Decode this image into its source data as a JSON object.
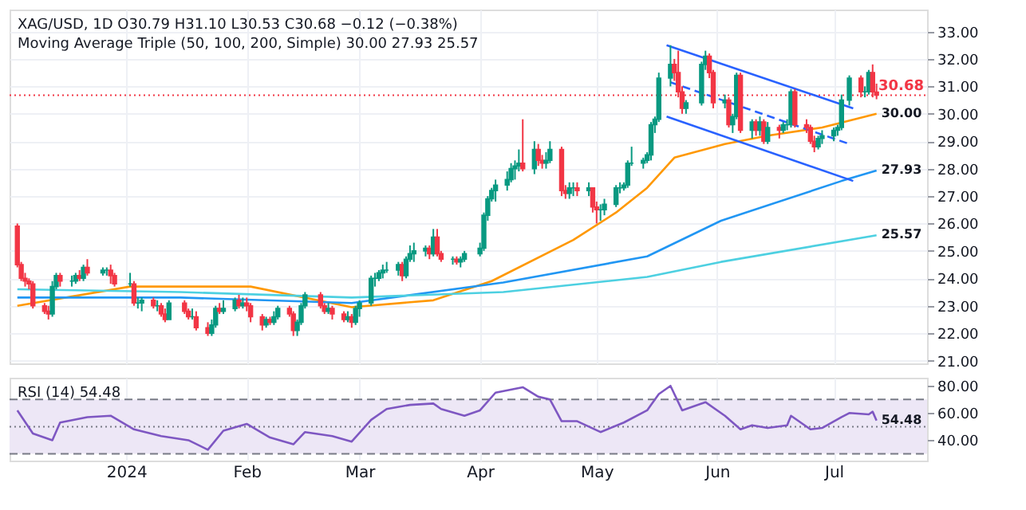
{
  "chart_data": [
    {
      "type": "candlestick",
      "title": "XAG/USD, 1D  O30.79  H31.10  L30.53  C30.68  −0.12 (−0.38%)",
      "subtitle": "Moving Average Triple (50, 100, 200, Simple)  30.00  27.93  25.57",
      "x": [
        "2023-12-04",
        "2023-12-05",
        "2023-12-06",
        "2023-12-07",
        "2023-12-08",
        "2023-12-11",
        "2023-12-12",
        "2023-12-13",
        "2023-12-14",
        "2023-12-15",
        "2023-12-18",
        "2023-12-19",
        "2023-12-20",
        "2023-12-21",
        "2023-12-22",
        "2023-12-26",
        "2023-12-27",
        "2023-12-28",
        "2023-12-29",
        "2024-01-02",
        "2024-01-03",
        "2024-01-04",
        "2024-01-05",
        "2024-01-08",
        "2024-01-09",
        "2024-01-10",
        "2024-01-11",
        "2024-01-12",
        "2024-01-16",
        "2024-01-17",
        "2024-01-18",
        "2024-01-19",
        "2024-01-22",
        "2024-01-23",
        "2024-01-24",
        "2024-01-25",
        "2024-01-26",
        "2024-01-29",
        "2024-01-30",
        "2024-01-31",
        "2024-02-01",
        "2024-02-02",
        "2024-02-05",
        "2024-02-06",
        "2024-02-07",
        "2024-02-08",
        "2024-02-09",
        "2024-02-12",
        "2024-02-13",
        "2024-02-14",
        "2024-02-15",
        "2024-02-16",
        "2024-02-20",
        "2024-02-21",
        "2024-02-22",
        "2024-02-23",
        "2024-02-26",
        "2024-02-27",
        "2024-02-28",
        "2024-02-29",
        "2024-03-01",
        "2024-03-04",
        "2024-03-05",
        "2024-03-06",
        "2024-03-07",
        "2024-03-08",
        "2024-03-11",
        "2024-03-12",
        "2024-03-13",
        "2024-03-14",
        "2024-03-15",
        "2024-03-18",
        "2024-03-19",
        "2024-03-20",
        "2024-03-21",
        "2024-03-22",
        "2024-03-25",
        "2024-03-26",
        "2024-03-27",
        "2024-03-28",
        "2024-04-01",
        "2024-04-02",
        "2024-04-03",
        "2024-04-04",
        "2024-04-05",
        "2024-04-08",
        "2024-04-09",
        "2024-04-10",
        "2024-04-11",
        "2024-04-12",
        "2024-04-15",
        "2024-04-16",
        "2024-04-17",
        "2024-04-18",
        "2024-04-19",
        "2024-04-22",
        "2024-04-23",
        "2024-04-24",
        "2024-04-25",
        "2024-04-26",
        "2024-04-29",
        "2024-04-30",
        "2024-05-01",
        "2024-05-02",
        "2024-05-03",
        "2024-05-06",
        "2024-05-07",
        "2024-05-08",
        "2024-05-09",
        "2024-05-10",
        "2024-05-13",
        "2024-05-14",
        "2024-05-15",
        "2024-05-16",
        "2024-05-17",
        "2024-05-20",
        "2024-05-21",
        "2024-05-22",
        "2024-05-23",
        "2024-05-24",
        "2024-05-28",
        "2024-05-29",
        "2024-05-30",
        "2024-05-31",
        "2024-06-03",
        "2024-06-04",
        "2024-06-05",
        "2024-06-06",
        "2024-06-07",
        "2024-06-10",
        "2024-06-11",
        "2024-06-12",
        "2024-06-13",
        "2024-06-14",
        "2024-06-17",
        "2024-06-18",
        "2024-06-19",
        "2024-06-20",
        "2024-06-21",
        "2024-06-24",
        "2024-06-25",
        "2024-06-26",
        "2024-06-27",
        "2024-06-28",
        "2024-07-01",
        "2024-07-02",
        "2024-07-03",
        "2024-07-05",
        "2024-07-08",
        "2024-07-09",
        "2024-07-10",
        "2024-07-11",
        "2024-07-12"
      ],
      "ohlc": [
        [
          25.9,
          26.0,
          24.4,
          24.5
        ],
        [
          24.5,
          24.6,
          23.9,
          24.0
        ],
        [
          24.0,
          24.2,
          23.7,
          23.9
        ],
        [
          23.9,
          24.0,
          23.6,
          23.8
        ],
        [
          23.8,
          23.9,
          22.9,
          23.0
        ],
        [
          23.0,
          23.1,
          22.7,
          22.8
        ],
        [
          22.8,
          23.0,
          22.5,
          22.7
        ],
        [
          22.7,
          23.9,
          22.6,
          23.7
        ],
        [
          23.7,
          24.2,
          23.6,
          24.1
        ],
        [
          24.1,
          24.2,
          23.7,
          23.9
        ],
        [
          23.9,
          24.1,
          23.7,
          23.9
        ],
        [
          23.9,
          24.2,
          23.8,
          24.1
        ],
        [
          24.1,
          24.3,
          23.9,
          24.0
        ],
        [
          24.0,
          24.5,
          23.9,
          24.4
        ],
        [
          24.4,
          24.7,
          24.1,
          24.2
        ],
        [
          24.2,
          24.4,
          24.1,
          24.3
        ],
        [
          24.3,
          24.4,
          24.1,
          24.3
        ],
        [
          24.3,
          24.5,
          23.8,
          24.1
        ],
        [
          24.1,
          24.2,
          23.7,
          23.8
        ],
        [
          23.8,
          24.2,
          23.7,
          23.8
        ],
        [
          23.8,
          23.9,
          23.0,
          23.1
        ],
        [
          23.1,
          23.3,
          22.9,
          23.1
        ],
        [
          23.1,
          23.3,
          22.8,
          23.2
        ],
        [
          23.2,
          23.3,
          22.9,
          23.0
        ],
        [
          23.0,
          23.2,
          22.8,
          23.0
        ],
        [
          23.0,
          23.1,
          22.6,
          22.7
        ],
        [
          22.7,
          22.9,
          22.4,
          22.5
        ],
        [
          22.5,
          23.2,
          22.5,
          23.1
        ],
        [
          23.1,
          23.2,
          22.7,
          22.8
        ],
        [
          22.8,
          22.9,
          22.5,
          22.6
        ],
        [
          22.6,
          22.9,
          22.5,
          22.6
        ],
        [
          22.6,
          22.8,
          22.1,
          22.2
        ],
        [
          22.2,
          22.4,
          21.9,
          22.0
        ],
        [
          22.0,
          22.5,
          21.9,
          22.3
        ],
        [
          22.3,
          23.0,
          22.2,
          22.9
        ],
        [
          22.9,
          23.1,
          22.7,
          22.8
        ],
        [
          22.8,
          23.2,
          22.7,
          22.9
        ],
        [
          22.9,
          23.3,
          22.8,
          23.2
        ],
        [
          23.2,
          23.4,
          22.9,
          23.0
        ],
        [
          23.0,
          23.3,
          22.9,
          23.1
        ],
        [
          23.1,
          23.3,
          22.8,
          23.0
        ],
        [
          23.0,
          23.1,
          22.4,
          22.6
        ],
        [
          22.6,
          22.7,
          22.1,
          22.3
        ],
        [
          22.3,
          22.6,
          22.2,
          22.5
        ],
        [
          22.5,
          22.6,
          22.3,
          22.4
        ],
        [
          22.4,
          22.8,
          22.3,
          22.6
        ],
        [
          22.6,
          23.0,
          22.5,
          22.9
        ],
        [
          22.9,
          23.0,
          22.6,
          22.7
        ],
        [
          22.7,
          22.8,
          21.9,
          22.1
        ],
        [
          22.1,
          22.5,
          21.9,
          22.4
        ],
        [
          22.4,
          23.1,
          22.3,
          23.0
        ],
        [
          23.0,
          23.5,
          22.9,
          23.4
        ],
        [
          23.4,
          23.5,
          22.9,
          23.0
        ],
        [
          23.0,
          23.1,
          22.7,
          22.8
        ],
        [
          22.8,
          23.1,
          22.7,
          22.9
        ],
        [
          22.9,
          23.0,
          22.5,
          22.7
        ],
        [
          22.7,
          22.8,
          22.4,
          22.5
        ],
        [
          22.5,
          22.8,
          22.4,
          22.6
        ],
        [
          22.6,
          22.7,
          22.2,
          22.4
        ],
        [
          22.4,
          23.0,
          22.3,
          22.9
        ],
        [
          22.9,
          23.2,
          22.6,
          23.1
        ],
        [
          23.1,
          24.1,
          23.0,
          24.0
        ],
        [
          24.0,
          24.2,
          23.7,
          24.0
        ],
        [
          24.0,
          24.3,
          23.9,
          24.2
        ],
        [
          24.2,
          24.5,
          24.0,
          24.3
        ],
        [
          24.3,
          24.6,
          24.2,
          24.3
        ],
        [
          24.3,
          24.6,
          24.1,
          24.5
        ],
        [
          24.5,
          24.6,
          23.9,
          24.1
        ],
        [
          24.1,
          24.8,
          24.0,
          24.7
        ],
        [
          24.7,
          25.2,
          24.6,
          24.9
        ],
        [
          24.9,
          25.3,
          24.6,
          25.0
        ],
        [
          25.0,
          25.2,
          24.8,
          25.1
        ],
        [
          25.1,
          25.2,
          24.7,
          24.9
        ],
        [
          24.9,
          25.8,
          24.8,
          25.5
        ],
        [
          25.5,
          25.8,
          24.8,
          24.9
        ],
        [
          24.9,
          25.0,
          24.6,
          24.7
        ],
        [
          24.7,
          24.8,
          24.5,
          24.7
        ],
        [
          24.7,
          24.8,
          24.5,
          24.6
        ],
        [
          24.6,
          24.8,
          24.4,
          24.7
        ],
        [
          24.7,
          25.0,
          24.6,
          24.9
        ],
        [
          24.9,
          25.3,
          24.8,
          25.1
        ],
        [
          25.1,
          26.4,
          25.0,
          26.3
        ],
        [
          26.3,
          27.0,
          26.1,
          26.9
        ],
        [
          26.9,
          27.3,
          26.8,
          27.2
        ],
        [
          27.2,
          27.6,
          26.8,
          27.4
        ],
        [
          27.4,
          27.9,
          27.2,
          27.6
        ],
        [
          27.6,
          28.2,
          27.5,
          28.0
        ],
        [
          28.0,
          28.3,
          27.6,
          28.1
        ],
        [
          28.1,
          28.7,
          27.9,
          28.2
        ],
        [
          28.2,
          29.8,
          27.9,
          28.0
        ],
        [
          28.0,
          29.0,
          27.8,
          28.7
        ],
        [
          28.7,
          28.9,
          28.1,
          28.3
        ],
        [
          28.3,
          28.5,
          28.0,
          28.2
        ],
        [
          28.2,
          28.6,
          28.0,
          28.3
        ],
        [
          28.3,
          29.0,
          28.2,
          28.7
        ],
        [
          28.7,
          28.8,
          27.0,
          27.2
        ],
        [
          27.2,
          27.4,
          26.9,
          27.1
        ],
        [
          27.1,
          27.5,
          26.9,
          27.3
        ],
        [
          27.3,
          27.5,
          27.0,
          27.3
        ],
        [
          27.3,
          27.5,
          27.0,
          27.2
        ],
        [
          27.2,
          27.5,
          27.0,
          27.3
        ],
        [
          27.3,
          27.3,
          26.4,
          26.6
        ],
        [
          26.6,
          26.8,
          26.0,
          26.5
        ],
        [
          26.5,
          26.7,
          26.1,
          26.5
        ],
        [
          26.5,
          26.9,
          26.3,
          26.7
        ],
        [
          26.7,
          27.4,
          26.6,
          27.3
        ],
        [
          27.3,
          27.5,
          27.1,
          27.3
        ],
        [
          27.3,
          27.5,
          27.2,
          27.4
        ],
        [
          27.4,
          28.3,
          27.3,
          28.2
        ],
        [
          28.2,
          28.8,
          28.1,
          28.2
        ],
        [
          28.2,
          28.4,
          28.0,
          28.3
        ],
        [
          28.3,
          28.6,
          28.2,
          28.5
        ],
        [
          28.5,
          29.7,
          28.3,
          29.6
        ],
        [
          29.6,
          29.9,
          29.3,
          29.8
        ],
        [
          29.8,
          31.5,
          29.7,
          31.3
        ],
        [
          31.3,
          32.5,
          31.0,
          31.8
        ],
        [
          31.8,
          32.0,
          31.2,
          31.5
        ],
        [
          31.5,
          32.3,
          30.6,
          30.8
        ],
        [
          30.8,
          31.0,
          30.0,
          30.2
        ],
        [
          30.2,
          30.5,
          30.0,
          30.4
        ],
        [
          30.4,
          31.9,
          30.3,
          31.8
        ],
        [
          31.8,
          32.3,
          31.6,
          32.1
        ],
        [
          32.1,
          32.2,
          31.3,
          31.5
        ],
        [
          31.5,
          31.6,
          30.2,
          30.4
        ],
        [
          30.4,
          30.7,
          30.2,
          30.5
        ],
        [
          30.5,
          30.6,
          29.5,
          29.6
        ],
        [
          29.6,
          30.0,
          29.3,
          29.9
        ],
        [
          29.9,
          31.5,
          29.8,
          31.4
        ],
        [
          31.4,
          31.5,
          29.3,
          29.4
        ],
        [
          29.4,
          29.8,
          29.1,
          29.7
        ],
        [
          29.7,
          29.8,
          29.2,
          29.4
        ],
        [
          29.4,
          29.9,
          29.2,
          29.7
        ],
        [
          29.7,
          29.8,
          28.9,
          29.0
        ],
        [
          29.0,
          29.7,
          28.9,
          29.5
        ],
        [
          29.5,
          29.6,
          29.1,
          29.4
        ],
        [
          29.4,
          29.7,
          29.3,
          29.6
        ],
        [
          29.6,
          29.8,
          29.4,
          29.6
        ],
        [
          29.6,
          30.9,
          29.5,
          30.8
        ],
        [
          30.8,
          30.9,
          29.5,
          29.6
        ],
        [
          29.6,
          29.8,
          29.3,
          29.5
        ],
        [
          29.5,
          29.6,
          28.9,
          29.0
        ],
        [
          29.0,
          29.2,
          28.6,
          28.8
        ],
        [
          28.8,
          29.2,
          28.7,
          29.1
        ],
        [
          29.1,
          29.4,
          28.9,
          29.2
        ],
        [
          29.2,
          29.5,
          29.0,
          29.4
        ],
        [
          29.4,
          29.6,
          29.2,
          29.5
        ],
        [
          29.5,
          30.7,
          29.4,
          30.5
        ],
        [
          30.5,
          31.4,
          30.3,
          31.3
        ],
        [
          31.3,
          31.4,
          30.6,
          30.8
        ],
        [
          30.8,
          31.0,
          30.6,
          30.8
        ],
        [
          30.8,
          31.6,
          30.7,
          31.5
        ],
        [
          31.5,
          31.8,
          30.6,
          30.8
        ],
        [
          30.79,
          31.1,
          30.53,
          30.68
        ]
      ],
      "colors": [
        "#f23645",
        "#f23645",
        "#f23645",
        "#f23645",
        "#f23645",
        "#f23645",
        "#f23645",
        "#089981",
        "#089981",
        "#f23645",
        "#089981",
        "#089981",
        "#f23645",
        "#089981",
        "#f23645",
        "#089981",
        "#089981",
        "#f23645",
        "#f23645",
        "#089981",
        "#f23645",
        "#089981",
        "#089981",
        "#f23645",
        "#089981",
        "#f23645",
        "#f23645",
        "#089981",
        "#f23645",
        "#f23645",
        "#089981",
        "#f23645",
        "#f23645",
        "#089981",
        "#089981",
        "#f23645",
        "#089981",
        "#089981",
        "#f23645",
        "#089981",
        "#f23645",
        "#f23645",
        "#f23645",
        "#089981",
        "#f23645",
        "#089981",
        "#089981",
        "#f23645",
        "#f23645",
        "#089981",
        "#089981",
        "#089981",
        "#f23645",
        "#f23645",
        "#089981",
        "#f23645",
        "#f23645",
        "#089981",
        "#f23645",
        "#089981",
        "#089981",
        "#089981",
        "#089981",
        "#089981",
        "#089981",
        "#089981",
        "#089981",
        "#f23645",
        "#089981",
        "#089981",
        "#089981",
        "#089981",
        "#f23645",
        "#089981",
        "#f23645",
        "#f23645",
        "#089981",
        "#f23645",
        "#089981",
        "#089981",
        "#089981",
        "#089981",
        "#089981",
        "#089981",
        "#089981",
        "#089981",
        "#089981",
        "#089981",
        "#089981",
        "#f23645",
        "#089981",
        "#f23645",
        "#f23645",
        "#089981",
        "#089981",
        "#f23645",
        "#f23645",
        "#089981",
        "#089981",
        "#f23645",
        "#089981",
        "#f23645",
        "#f23645",
        "#089981",
        "#089981",
        "#089981",
        "#089981",
        "#089981",
        "#089981",
        "#089981",
        "#089981",
        "#089981",
        "#089981",
        "#089981",
        "#089981",
        "#089981",
        "#f23645",
        "#f23645",
        "#f23645",
        "#089981",
        "#089981",
        "#089981",
        "#f23645",
        "#f23645",
        "#089981",
        "#f23645",
        "#089981",
        "#089981",
        "#f23645",
        "#089981",
        "#f23645",
        "#089981",
        "#f23645",
        "#089981",
        "#f23645",
        "#089981",
        "#089981",
        "#089981",
        "#f23645",
        "#f23645",
        "#f23645",
        "#f23645",
        "#089981",
        "#089981",
        "#089981",
        "#089981",
        "#089981",
        "#089981",
        "#f23645",
        "#089981",
        "#089981",
        "#f23645",
        "#f23645"
      ],
      "series": [
        {
          "type": "line",
          "color": "#ff9800",
          "x": [
            "2023-12-04",
            "2024-01-02",
            "2024-02-02",
            "2024-02-28",
            "2024-03-20",
            "2024-04-04",
            "2024-04-25",
            "2024-05-06",
            "2024-05-14",
            "2024-05-21",
            "2024-06-03",
            "2024-06-14",
            "2024-06-28",
            "2024-07-12"
          ],
          "values": [
            23.0,
            23.7,
            23.7,
            22.95,
            23.2,
            23.9,
            25.4,
            26.4,
            27.3,
            28.4,
            28.9,
            29.2,
            29.5,
            30.0
          ]
        },
        {
          "type": "line",
          "color": "#2196f3",
          "x": [
            "2023-12-04",
            "2024-01-15",
            "2024-02-28",
            "2024-04-07",
            "2024-05-14",
            "2024-06-02",
            "2024-07-03",
            "2024-07-12"
          ],
          "values": [
            23.3,
            23.3,
            23.1,
            23.85,
            24.8,
            26.1,
            27.55,
            27.93
          ]
        },
        {
          "type": "line",
          "color": "#4dd0e1",
          "x": [
            "2023-12-04",
            "2024-01-15",
            "2024-02-28",
            "2024-04-07",
            "2024-05-14",
            "2024-06-02",
            "2024-07-12"
          ],
          "values": [
            23.6,
            23.5,
            23.3,
            23.5,
            24.05,
            24.6,
            25.57
          ]
        },
        {
          "type": "line",
          "color": "#2962ff",
          "x": [
            "2024-05-19",
            "2024-07-06"
          ],
          "values": [
            32.5,
            30.2
          ]
        },
        {
          "type": "line",
          "color": "#2962ff",
          "x": [
            "2024-05-19",
            "2024-07-06"
          ],
          "values": [
            29.9,
            27.55
          ]
        },
        {
          "type": "line",
          "color": "#2962ff",
          "line_style": "dashed",
          "x": [
            "2024-05-20",
            "2024-07-05"
          ],
          "values": [
            31.15,
            28.9
          ]
        }
      ],
      "xlim": [
        "2023-12-02",
        "2024-07-25"
      ],
      "ylim": [
        20.9,
        33.8
      ],
      "xticks": [
        {
          "value": "2024-01-01",
          "label": null
        },
        {
          "value": "2024-02-01",
          "label": null
        },
        {
          "value": "2024-03-01",
          "label": null
        },
        {
          "value": "2024-04-01",
          "label": null
        },
        {
          "value": "2024-05-01",
          "label": null
        },
        {
          "value": "2024-06-01",
          "label": null
        },
        {
          "value": "2024-07-01",
          "label": null
        }
      ],
      "yticks": [
        {
          "value": 21,
          "label": "21.00"
        },
        {
          "value": 22,
          "label": "22.00"
        },
        {
          "value": 23,
          "label": "23.00"
        },
        {
          "value": 24,
          "label": "24.00"
        },
        {
          "value": 25,
          "label": "25.00"
        },
        {
          "value": 26,
          "label": "26.00"
        },
        {
          "value": 27,
          "label": "27.00"
        },
        {
          "value": 28,
          "label": "28.00"
        },
        {
          "value": 29,
          "label": "29.00"
        },
        {
          "value": 30,
          "label": "30.00"
        },
        {
          "value": 31,
          "label": "31.00"
        },
        {
          "value": 32,
          "label": "32.00"
        },
        {
          "value": 33,
          "label": "33.00"
        }
      ],
      "tick_labels": "y",
      "grid": true,
      "ref_lines": [
        {
          "axis": "y",
          "value": 30.68,
          "label": "30.68",
          "color": "#f23645",
          "line_style": "dotted"
        }
      ],
      "annotations": [
        {
          "text": "30.00",
          "x": "2024-07-12",
          "y": 30.0
        },
        {
          "text": "27.93",
          "x": "2024-07-12",
          "y": 27.93
        },
        {
          "text": "25.57",
          "x": "2024-07-12",
          "y": 25.57
        }
      ]
    },
    {
      "type": "line",
      "title": "RSI (14)  54.48",
      "series": [
        {
          "color": "#7e57c2",
          "x": [
            "2023-12-04",
            "2023-12-08",
            "2023-12-13",
            "2023-12-15",
            "2023-12-22",
            "2023-12-28",
            "2024-01-03",
            "2024-01-10",
            "2024-01-17",
            "2024-01-22",
            "2024-01-26",
            "2024-02-01",
            "2024-02-07",
            "2024-02-13",
            "2024-02-16",
            "2024-02-23",
            "2024-02-28",
            "2024-03-04",
            "2024-03-08",
            "2024-03-14",
            "2024-03-20",
            "2024-03-22",
            "2024-03-28",
            "2024-04-01",
            "2024-04-05",
            "2024-04-12",
            "2024-04-16",
            "2024-04-19",
            "2024-04-22",
            "2024-04-26",
            "2024-05-02",
            "2024-05-08",
            "2024-05-14",
            "2024-05-17",
            "2024-05-20",
            "2024-05-23",
            "2024-05-29",
            "2024-06-03",
            "2024-06-07",
            "2024-06-10",
            "2024-06-14",
            "2024-06-19",
            "2024-06-20",
            "2024-06-25",
            "2024-06-28",
            "2024-07-03",
            "2024-07-05",
            "2024-07-10",
            "2024-07-11",
            "2024-07-12"
          ],
          "values": [
            62,
            45,
            40,
            53,
            57,
            58,
            48,
            43,
            40,
            33,
            47,
            52,
            42,
            37,
            46,
            43,
            39,
            55,
            63,
            66,
            67,
            63,
            58,
            62,
            75,
            79,
            72,
            70,
            54,
            54,
            46,
            53,
            62,
            74,
            80,
            62,
            68,
            58,
            48,
            51,
            49,
            51,
            58,
            48,
            49,
            57,
            60,
            59,
            61,
            54.48
          ]
        }
      ],
      "xlim": [
        "2023-12-02",
        "2024-07-25"
      ],
      "ylim": [
        25,
        86
      ],
      "xticks": [
        {
          "value": "2024-01-01",
          "label": "2024"
        },
        {
          "value": "2024-02-01",
          "label": "Feb"
        },
        {
          "value": "2024-03-01",
          "label": "Mar"
        },
        {
          "value": "2024-04-01",
          "label": "Apr"
        },
        {
          "value": "2024-05-01",
          "label": "May"
        },
        {
          "value": "2024-06-01",
          "label": "Jun"
        },
        {
          "value": "2024-07-01",
          "label": "Jul"
        }
      ],
      "yticks": [
        {
          "value": 40,
          "label": "40.00"
        },
        {
          "value": 60,
          "label": "60.00"
        },
        {
          "value": 80,
          "label": "80.00"
        }
      ],
      "grid": "x",
      "bands": [
        {
          "axis": "y",
          "from": 30,
          "to": 70,
          "color": "#ede7f6"
        }
      ],
      "ref_lines": [
        {
          "axis": "y",
          "value": 70,
          "color": "#787b86",
          "line_style": "dashed"
        },
        {
          "axis": "y",
          "value": 50,
          "color": "#787b86",
          "line_style": "dotted"
        },
        {
          "axis": "y",
          "value": 30,
          "color": "#787b86",
          "line_style": "dashed"
        }
      ],
      "annotations": [
        {
          "text": "54.48",
          "x": "2024-07-12",
          "y": 54.48
        }
      ]
    }
  ]
}
